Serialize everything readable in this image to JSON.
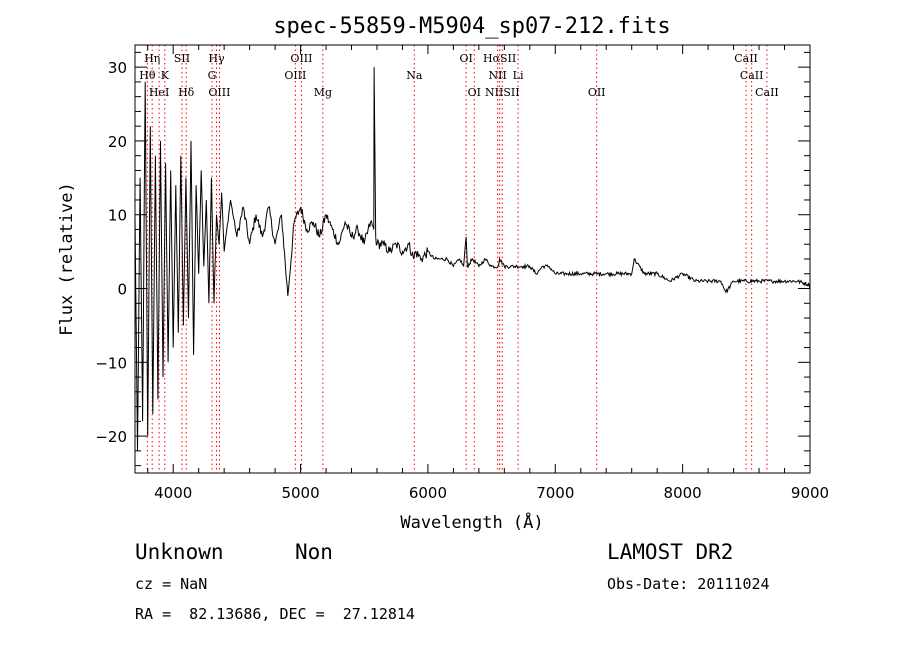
{
  "chart_data": {
    "type": "line",
    "title": "spec-55859-M5904_sp07-212.fits",
    "xlabel": "Wavelength (Å)",
    "ylabel": "Flux (relative)",
    "xlim": [
      3700,
      9000
    ],
    "ylim": [
      -25,
      33
    ],
    "xticks": [
      4000,
      5000,
      6000,
      7000,
      8000,
      9000
    ],
    "yticks": [
      -20,
      -10,
      0,
      10,
      20,
      30
    ],
    "line_color": "#000000",
    "marker_color": "#ff0000",
    "series": [
      {
        "x": [
          3700,
          3720,
          3740,
          3760,
          3780,
          3800,
          3820,
          3840,
          3860,
          3880,
          3900,
          3920,
          3940,
          3960,
          3980,
          4000,
          4020,
          4040,
          4060,
          4080,
          4100,
          4120,
          4140,
          4160,
          4180,
          4200,
          4220,
          4240,
          4260,
          4280,
          4300,
          4320,
          4340,
          4360,
          4380,
          4400,
          4450,
          4500,
          4550,
          4600,
          4650,
          4700,
          4750,
          4800,
          4850,
          4900,
          4950,
          5000,
          5050,
          5100,
          5150,
          5200,
          5250,
          5300,
          5350,
          5400,
          5450,
          5500,
          5550,
          5575,
          5577,
          5590,
          5600,
          5650,
          5700,
          5750,
          5800,
          5850,
          5890,
          5900,
          5950,
          6000,
          6050,
          6100,
          6150,
          6200,
          6250,
          6280,
          6300,
          6310,
          6350,
          6400,
          6450,
          6500,
          6550,
          6563,
          6600,
          6650,
          6700,
          6750,
          6800,
          6850,
          6900,
          6950,
          7000,
          7100,
          7200,
          7300,
          7400,
          7500,
          7600,
          7620,
          7700,
          7800,
          7900,
          8000,
          8100,
          8200,
          8300,
          8340,
          8400,
          8500,
          8600,
          8700,
          8800,
          8900,
          9000
        ],
        "values": [
          10,
          -22,
          15,
          -18,
          28,
          -20,
          22,
          -17,
          18,
          -15,
          20,
          -12,
          17,
          -10,
          16,
          -8,
          14,
          -6,
          18,
          -5,
          15,
          -4,
          20,
          -9,
          14,
          2,
          16,
          3,
          12,
          -2,
          15,
          -2,
          10,
          6,
          13,
          5,
          12,
          7,
          11,
          6,
          10,
          7,
          11,
          6,
          10,
          -1,
          9,
          11,
          8,
          9,
          7,
          10,
          8,
          6,
          9,
          7,
          8,
          6,
          9,
          8,
          30,
          7,
          6,
          6,
          5,
          6,
          5,
          6,
          4,
          5,
          4,
          5,
          4,
          4,
          4,
          3,
          4,
          3,
          7,
          3,
          4,
          3,
          4,
          3,
          3,
          4,
          3,
          3,
          3,
          3,
          3,
          2,
          3,
          3,
          2,
          2,
          2,
          2,
          2,
          2,
          2,
          4,
          2,
          2,
          1,
          2,
          1,
          1,
          1,
          -0.5,
          1,
          1,
          1,
          1,
          1,
          1,
          0.5
        ]
      }
    ],
    "lines": [
      {
        "name": "Hη",
        "x": 3835,
        "row": 0
      },
      {
        "name": "SII",
        "x": 4069,
        "row": 0
      },
      {
        "name": "Hγ",
        "x": 4340,
        "row": 0
      },
      {
        "name": "OIII",
        "x": 5007,
        "row": 0
      },
      {
        "name": "OI",
        "x": 6300,
        "row": 0
      },
      {
        "name": "HαSII",
        "x": 6563,
        "row": 0
      },
      {
        "name": "CaII",
        "x": 8498,
        "row": 0
      },
      {
        "name": "Hθ",
        "x": 3797,
        "row": 1
      },
      {
        "name": "K",
        "x": 3934,
        "row": 1
      },
      {
        "name": "G",
        "x": 4305,
        "row": 1
      },
      {
        "name": "OIII",
        "x": 4959,
        "row": 1
      },
      {
        "name": "Na",
        "x": 5893,
        "row": 1
      },
      {
        "name": "NII",
        "x": 6548,
        "row": 1
      },
      {
        "name": "Li",
        "x": 6708,
        "row": 1
      },
      {
        "name": "CaII",
        "x": 8542,
        "row": 1
      },
      {
        "name": "HeI",
        "x": 3889,
        "row": 2
      },
      {
        "name": "Hδ",
        "x": 4102,
        "row": 2
      },
      {
        "name": "OIII",
        "x": 4363,
        "row": 2
      },
      {
        "name": "Mg",
        "x": 5175,
        "row": 2
      },
      {
        "name": "OI",
        "x": 6364,
        "row": 2
      },
      {
        "name": "NIISII",
        "x": 6584,
        "row": 2
      },
      {
        "name": "OII",
        "x": 7325,
        "row": 2
      },
      {
        "name": "CaII",
        "x": 8662,
        "row": 2
      }
    ]
  },
  "footer": {
    "class": "Unknown",
    "subclass": "Non",
    "survey": "LAMOST DR2",
    "cz": "cz = NaN",
    "obs_date": "Obs-Date: 20111024",
    "radec": "RA =  82.13686, DEC =  27.12814"
  }
}
